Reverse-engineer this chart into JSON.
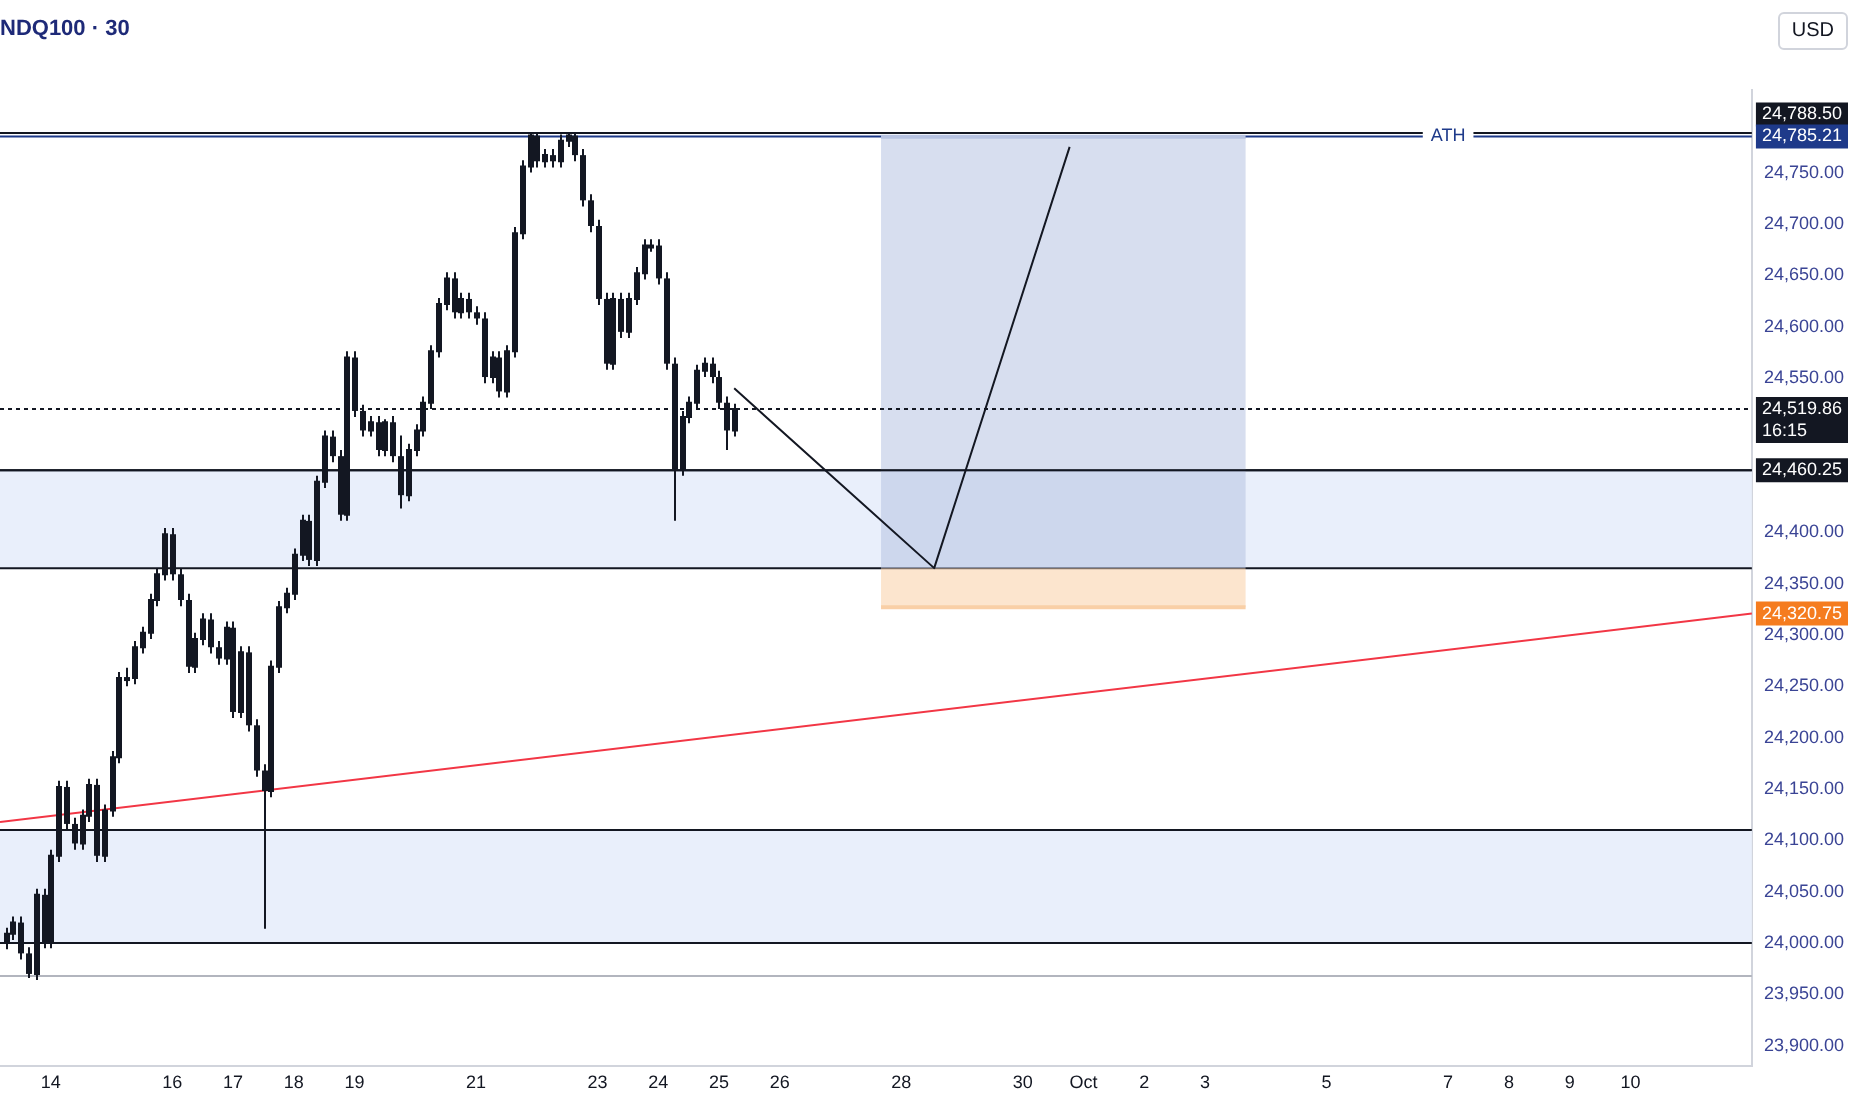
{
  "chart_data": {
    "type": "candlestick",
    "title": "NDQ100 · 30",
    "color": "#131722",
    "x": [
      "--09-13T06:00",
      "--09-13T09:00",
      "--09-13T12:00",
      "--09-13T15:00",
      "--09-13T18:00",
      "--09-13T21:00",
      "--09-14T00:00",
      "--09-14T03:00",
      "--09-14T06:00",
      "--09-14T09:00",
      "--09-14T12:00",
      "--09-14T15:00",
      "--09-14T18:00",
      "--09-14T21:00",
      "--09-15T00:00",
      "--09-15T03:00",
      "--09-15T06:00",
      "--09-15T09:00",
      "--09-15T12:00",
      "--09-15T15:00",
      "--09-15T18:00",
      "--09-15T21:00",
      "--09-16T00:00",
      "--09-16T03:00",
      "--09-16T06:00",
      "--09-16T09:00",
      "--09-16T12:00",
      "--09-16T15:00",
      "--09-16T18:00",
      "--09-16T21:00",
      "--09-17T00:00",
      "--09-17T03:00",
      "--09-17T06:00",
      "--09-17T09:00",
      "--09-17T12:00",
      "--09-17T15:00",
      "--09-17T18:00",
      "--09-17T21:00",
      "--09-18T00:00",
      "--09-18T03:00",
      "--09-18T06:00",
      "--09-18T09:00",
      "--09-18T12:00",
      "--09-18T15:00",
      "--09-18T18:00",
      "--09-18T21:00",
      "--09-19T00:00",
      "--09-19T03:00",
      "--09-19T06:00",
      "--09-19T09:00",
      "--09-19T12:00",
      "--09-19T15:00",
      "--09-19T18:00",
      "--09-19T21:00",
      "--09-20T00:00",
      "--09-20T03:00",
      "--09-20T06:00",
      "--09-20T09:00",
      "--09-20T12:00",
      "--09-20T15:00",
      "--09-20T18:00",
      "--09-20T21:00",
      "--09-21T00:00",
      "--09-21T03:00",
      "--09-21T06:00",
      "--09-21T09:00",
      "--09-21T12:00",
      "--09-21T15:00",
      "--09-21T18:00",
      "--09-21T21:00",
      "--09-22T00:00",
      "--09-22T03:00",
      "--09-22T06:00",
      "--09-22T09:00",
      "--09-22T12:00",
      "--09-22T15:00",
      "--09-22T18:00",
      "--09-22T21:00",
      "--09-23T00:00",
      "--09-23T03:00",
      "--09-23T06:00",
      "--09-23T09:00",
      "--09-23T12:00",
      "--09-23T15:00",
      "--09-23T18:00",
      "--09-23T21:00",
      "--09-24T00:00",
      "--09-24T03:00",
      "--09-24T06:00",
      "--09-24T09:00",
      "--09-24T12:00",
      "--09-24T15:00",
      "--09-24T18:00",
      "--09-24T21:00",
      "--09-25T00:00",
      "--09-25T03:00",
      "--09-25T06:00"
    ],
    "ohlc": [
      [
        24000,
        24015,
        23994,
        24009
      ],
      [
        24009,
        24026,
        24003,
        24020
      ],
      [
        24020,
        24026,
        23984,
        23990
      ],
      [
        23990,
        23996,
        23966,
        23970
      ],
      [
        23970,
        24053,
        23964,
        24047
      ],
      [
        24047,
        24053,
        23995,
        24001
      ],
      [
        24001,
        24091,
        23995,
        24085
      ],
      [
        24085,
        24158,
        24079,
        24152
      ],
      [
        24152,
        24158,
        24110,
        24116
      ],
      [
        24116,
        24122,
        24091,
        24097
      ],
      [
        24097,
        24130,
        24091,
        24124
      ],
      [
        24124,
        24160,
        24118,
        24154
      ],
      [
        24154,
        24160,
        24079,
        24085
      ],
      [
        24085,
        24135,
        24079,
        24129
      ],
      [
        24129,
        24187,
        24123,
        24181
      ],
      [
        24181,
        24264,
        24175,
        24258
      ],
      [
        24258,
        24268,
        24250,
        24258
      ],
      [
        24258,
        24294,
        24252,
        24288
      ],
      [
        24288,
        24308,
        24282,
        24302
      ],
      [
        24302,
        24340,
        24296,
        24334
      ],
      [
        24334,
        24365,
        24328,
        24359
      ],
      [
        24359,
        24404,
        24353,
        24398
      ],
      [
        24398,
        24404,
        24353,
        24359
      ],
      [
        24359,
        24365,
        24328,
        24334
      ],
      [
        24334,
        24340,
        24263,
        24269
      ],
      [
        24269,
        24302,
        24263,
        24296
      ],
      [
        24296,
        24321,
        24290,
        24315
      ],
      [
        24315,
        24321,
        24282,
        24288
      ],
      [
        24288,
        24294,
        24271,
        24277
      ],
      [
        24277,
        24313,
        24271,
        24307
      ],
      [
        24307,
        24313,
        24219,
        24225
      ],
      [
        24225,
        24289,
        24219,
        24283
      ],
      [
        24283,
        24289,
        24206,
        24212
      ],
      [
        24212,
        24218,
        24162,
        24168
      ],
      [
        24168,
        24174,
        24014,
        24148
      ],
      [
        24148,
        24275,
        24142,
        24269
      ],
      [
        24269,
        24333,
        24263,
        24327
      ],
      [
        24327,
        24346,
        24321,
        24340
      ],
      [
        24340,
        24384,
        24334,
        24378
      ],
      [
        24378,
        24417,
        24372,
        24411
      ],
      [
        24411,
        24417,
        24367,
        24373
      ],
      [
        24373,
        24455,
        24367,
        24449
      ],
      [
        24449,
        24499,
        24443,
        24493
      ],
      [
        24493,
        24499,
        24468,
        24474
      ],
      [
        24474,
        24480,
        24411,
        24417
      ],
      [
        24417,
        24576,
        24411,
        24570
      ],
      [
        24570,
        24576,
        24512,
        24518
      ],
      [
        24518,
        24524,
        24493,
        24499
      ],
      [
        24499,
        24513,
        24493,
        24507
      ],
      [
        24507,
        24513,
        24474,
        24480
      ],
      [
        24480,
        24510,
        24474,
        24507
      ],
      [
        24507,
        24513,
        24468,
        24474
      ],
      [
        24474,
        24494,
        24423,
        24436
      ],
      [
        24436,
        24486,
        24430,
        24480
      ],
      [
        24480,
        24505,
        24474,
        24499
      ],
      [
        24499,
        24532,
        24493,
        24526
      ],
      [
        24526,
        24582,
        24520,
        24576
      ],
      [
        24576,
        24628,
        24570,
        24622
      ],
      [
        24622,
        24653,
        24616,
        24647
      ],
      [
        24647,
        24653,
        24608,
        24614
      ],
      [
        24614,
        24633,
        24608,
        24627
      ],
      [
        24627,
        24633,
        24608,
        24614
      ],
      [
        24614,
        24620,
        24602,
        24608
      ],
      [
        24608,
        24614,
        24545,
        24551
      ],
      [
        24551,
        24576,
        24545,
        24570
      ],
      [
        24570,
        24576,
        24531,
        24537
      ],
      [
        24537,
        24582,
        24531,
        24576
      ],
      [
        24576,
        24697,
        24570,
        24691
      ],
      [
        24691,
        24762,
        24685,
        24756
      ],
      [
        24756,
        24788.5,
        24750,
        24786
      ],
      [
        24786,
        24788,
        24755,
        24761
      ],
      [
        24761,
        24773,
        24755,
        24767
      ],
      [
        24767,
        24773,
        24755,
        24761
      ],
      [
        24761,
        24787,
        24755,
        24781
      ],
      [
        24781,
        24788,
        24775,
        24786
      ],
      [
        24786,
        24788,
        24761,
        24767
      ],
      [
        24767,
        24773,
        24717,
        24723
      ],
      [
        24723,
        24729,
        24692,
        24698
      ],
      [
        24698,
        24704,
        24621,
        24627
      ],
      [
        24627,
        24633,
        24558,
        24564
      ],
      [
        24564,
        24633,
        24558,
        24627
      ],
      [
        24627,
        24633,
        24589,
        24595
      ],
      [
        24595,
        24633,
        24589,
        24627
      ],
      [
        24627,
        24658,
        24621,
        24652
      ],
      [
        24652,
        24685,
        24646,
        24679
      ],
      [
        24679,
        24685,
        24673,
        24679
      ],
      [
        24679,
        24685,
        24641,
        24647
      ],
      [
        24647,
        24653,
        24558,
        24564
      ],
      [
        24564,
        24570,
        24411,
        24461
      ],
      [
        24461,
        24518,
        24455,
        24512
      ],
      [
        24512,
        24532,
        24506,
        24526
      ],
      [
        24526,
        24563,
        24520,
        24557
      ],
      [
        24557,
        24570,
        24551,
        24564
      ],
      [
        24564,
        24570,
        24545,
        24551
      ],
      [
        24551,
        24557,
        24520,
        24526
      ],
      [
        24526,
        24532,
        24480,
        24499
      ],
      [
        24499,
        24525,
        24493,
        24519.86
      ]
    ],
    "xlim": [
      "--09-13T04:00",
      "--10-12T00:00"
    ],
    "xticks": [
      {
        "value": "--09-14",
        "label": "14"
      },
      {
        "value": "--09-16",
        "label": "16"
      },
      {
        "value": "--09-17",
        "label": "17"
      },
      {
        "value": "--09-18",
        "label": "18"
      },
      {
        "value": "--09-19",
        "label": "19"
      },
      {
        "value": "--09-21",
        "label": "21"
      },
      {
        "value": "--09-23",
        "label": "23"
      },
      {
        "value": "--09-24",
        "label": "24"
      },
      {
        "value": "--09-25",
        "label": "25"
      },
      {
        "value": "--09-26",
        "label": "26"
      },
      {
        "value": "--09-28",
        "label": "28"
      },
      {
        "value": "--09-30",
        "label": "30"
      },
      {
        "value": "--10-01",
        "label": "Oct"
      },
      {
        "value": "--10-02",
        "label": "2"
      },
      {
        "value": "--10-03",
        "label": "3"
      },
      {
        "value": "--10-05",
        "label": "5"
      },
      {
        "value": "--10-07",
        "label": "7"
      },
      {
        "value": "--10-08",
        "label": "8"
      },
      {
        "value": "--10-09",
        "label": "9"
      },
      {
        "value": "--10-10",
        "label": "10"
      }
    ],
    "ylim": [
      23880,
      24830
    ],
    "yticks": [
      {
        "value": 24750,
        "label": "24,750.00"
      },
      {
        "value": 24700,
        "label": "24,700.00"
      },
      {
        "value": 24650,
        "label": "24,650.00"
      },
      {
        "value": 24600,
        "label": "24,600.00"
      },
      {
        "value": 24550,
        "label": "24,550.00"
      },
      {
        "value": 24400,
        "label": "24,400.00"
      },
      {
        "value": 24350,
        "label": "24,350.00"
      },
      {
        "value": 24300,
        "label": "24,300.00"
      },
      {
        "value": 24250,
        "label": "24,250.00"
      },
      {
        "value": 24200,
        "label": "24,200.00"
      },
      {
        "value": 24150,
        "label": "24,150.00"
      },
      {
        "value": 24100,
        "label": "24,100.00"
      },
      {
        "value": 24050,
        "label": "24,050.00"
      },
      {
        "value": 24000,
        "label": "24,000.00"
      },
      {
        "value": 23950,
        "label": "23,950.00"
      },
      {
        "value": 23900,
        "label": "23,900.00"
      }
    ],
    "grid": false,
    "legend": false,
    "series": [
      {
        "type": "line",
        "color": "#f23645",
        "x": [
          "--09-13T04:00",
          "--10-12T00:00"
        ],
        "values": [
          24118,
          24320.75
        ]
      },
      {
        "type": "line",
        "color": "#b7c3e2",
        "x": [
          "--09-27T16:00",
          "--10-03T16:00"
        ],
        "values": [
          24785,
          24785
        ],
        "lower": [
          24365,
          24365
        ],
        "upper": [
          24785,
          24785
        ]
      },
      {
        "type": "line",
        "color": "#f9cfa6",
        "x": [
          "--09-27T16:00",
          "--10-03T16:00"
        ],
        "values": [
          24327,
          24327
        ],
        "lower": [
          24327,
          24327
        ],
        "upper": [
          24365,
          24365
        ]
      },
      {
        "type": "line",
        "color": "#131722",
        "x": [
          "--09-25T06:00",
          "--09-28T13:00",
          "--09-30T18:30"
        ],
        "values": [
          24540,
          24365,
          24775
        ]
      }
    ],
    "bands": [
      {
        "axis": "y",
        "from": 24365,
        "to": 24460.25,
        "color": "#e9effb"
      },
      {
        "axis": "y",
        "from": 24000,
        "to": 24110,
        "color": "#e9effb"
      }
    ],
    "ref_lines": [
      {
        "axis": "y",
        "value": 24788.5,
        "label": "24,788.50",
        "color": "#131722"
      },
      {
        "axis": "y",
        "value": 24785.21,
        "label": "24,785.21",
        "color": "#1e3a8a"
      },
      {
        "axis": "y",
        "value": 24519.86,
        "label": "24,519.86\n16:15",
        "color": "#131722",
        "line_style": "dotted"
      },
      {
        "axis": "y",
        "value": 24460.25,
        "label": "24,460.25",
        "color": "#131722"
      },
      {
        "axis": "y",
        "value": 23968,
        "label": null,
        "color": "#b2b5be"
      }
    ],
    "annotations": [
      {
        "text": "ATH",
        "x": "--10-07",
        "y": 24785.21
      },
      {
        "text": "24,320.75",
        "x": "--10-12T00:00",
        "y": 24320.75
      },
      "USD"
    ]
  }
}
